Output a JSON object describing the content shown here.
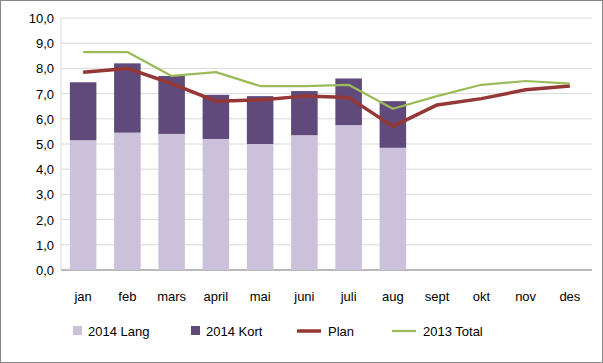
{
  "chart_data": {
    "type": "bar",
    "stacked": true,
    "grid": true,
    "legend": "bottom",
    "categories": [
      "jan",
      "feb",
      "mars",
      "april",
      "mai",
      "juni",
      "juli",
      "aug",
      "sept",
      "okt",
      "nov",
      "des"
    ],
    "ylim": [
      0,
      10
    ],
    "yticks": [
      {
        "value": 0,
        "label": "0,0"
      },
      {
        "value": 1,
        "label": "1,0"
      },
      {
        "value": 2,
        "label": "2,0"
      },
      {
        "value": 3,
        "label": "3,0"
      },
      {
        "value": 4,
        "label": "4,0"
      },
      {
        "value": 5,
        "label": "5,0"
      },
      {
        "value": 6,
        "label": "6,0"
      },
      {
        "value": 7,
        "label": "7,0"
      },
      {
        "value": 8,
        "label": "8,0"
      },
      {
        "value": 9,
        "label": "9,0"
      },
      {
        "value": 10,
        "label": "10,0"
      }
    ],
    "series": [
      {
        "name": "2014 Lang",
        "type": "bar",
        "color": "#ccc1da",
        "values": [
          5.15,
          5.45,
          5.4,
          5.2,
          5.0,
          5.35,
          5.75,
          4.85,
          null,
          null,
          null,
          null
        ]
      },
      {
        "name": "2014 Kort",
        "type": "bar",
        "color": "#604a7b",
        "values": [
          2.3,
          2.75,
          2.3,
          1.75,
          1.9,
          1.75,
          1.85,
          1.85,
          null,
          null,
          null,
          null
        ]
      },
      {
        "name": "Plan",
        "type": "line",
        "color": "#953735",
        "values": [
          7.85,
          8.0,
          7.4,
          6.7,
          6.75,
          6.9,
          6.85,
          5.7,
          6.55,
          6.8,
          7.15,
          7.3
        ]
      },
      {
        "name": "2013 Total",
        "type": "line",
        "color": "#9bbb59",
        "values": [
          8.65,
          8.65,
          7.7,
          7.85,
          7.3,
          7.3,
          7.35,
          6.4,
          6.9,
          7.35,
          7.5,
          7.4
        ]
      }
    ]
  }
}
